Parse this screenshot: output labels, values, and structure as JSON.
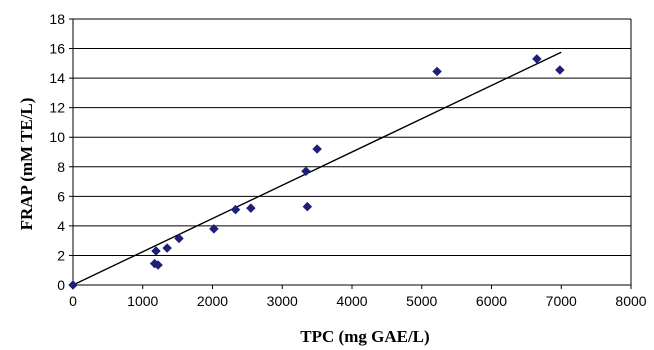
{
  "chart_data": {
    "type": "scatter",
    "xlabel": "TPC (mg GAE/L)",
    "ylabel": "FRAP (mM TE/L)",
    "xlim": [
      0,
      8000
    ],
    "ylim": [
      0,
      18
    ],
    "x_ticks": [
      0,
      1000,
      2000,
      3000,
      4000,
      5000,
      6000,
      7000,
      8000
    ],
    "y_ticks": [
      0,
      2,
      4,
      6,
      8,
      10,
      12,
      14,
      16,
      18
    ],
    "x_tick_labels": [
      "0",
      "1000",
      "2000",
      "3000",
      "4000",
      "5000",
      "6000",
      "7000",
      "8000"
    ],
    "y_tick_labels": [
      "0",
      "2",
      "4",
      "6",
      "8",
      "10",
      "12",
      "14",
      "16",
      "18"
    ],
    "grid": "horizontal",
    "marker_color": "#1f1f7a",
    "series": [
      {
        "x": [
          0,
          1170,
          1190,
          1220,
          1350,
          1520,
          2020,
          2330,
          2550,
          3340,
          3360,
          3500,
          5220,
          6650,
          6980
        ],
        "y": [
          0,
          1.45,
          2.3,
          1.35,
          2.5,
          3.15,
          3.8,
          5.1,
          5.2,
          7.7,
          5.3,
          9.2,
          14.45,
          15.3,
          14.55
        ]
      }
    ],
    "trendline": {
      "x": [
        0,
        7000
      ],
      "y": [
        0,
        15.75
      ]
    }
  }
}
